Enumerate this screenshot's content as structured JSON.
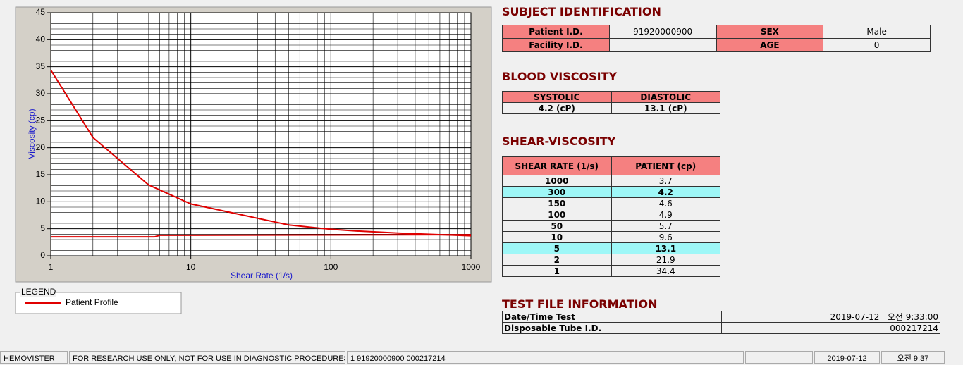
{
  "chart_data": {
    "type": "line",
    "xlabel": "Shear Rate (1/s)",
    "ylabel": "Viscosity (cp)",
    "x_scale": "log",
    "xlim": [
      1,
      1000
    ],
    "ylim": [
      0,
      45
    ],
    "xticks": [
      1,
      10,
      100,
      1000
    ],
    "yticks": [
      0,
      5,
      10,
      15,
      20,
      25,
      30,
      35,
      40,
      45
    ],
    "xminorticks": [
      2,
      3,
      4,
      5,
      6,
      7,
      8,
      9,
      20,
      30,
      40,
      50,
      60,
      70,
      80,
      90,
      200,
      300,
      400,
      500,
      600,
      700,
      800,
      900
    ],
    "yminorticks": [
      1,
      2,
      3,
      4,
      6,
      7,
      8,
      9,
      11,
      12,
      13,
      14,
      16,
      17,
      18,
      19,
      21,
      22,
      23,
      24,
      26,
      27,
      28,
      29,
      31,
      32,
      33,
      34,
      36,
      37,
      38,
      39,
      41,
      42,
      43,
      44
    ],
    "grid": true,
    "legend_title": "LEGEND",
    "series": [
      {
        "name": "Patient Profile",
        "color": "#e00000",
        "x": [
          1,
          2,
          5,
          10,
          50,
          100,
          150,
          300,
          1000
        ],
        "values": [
          34.4,
          21.9,
          13.1,
          9.6,
          5.7,
          4.9,
          4.6,
          4.2,
          3.7
        ]
      },
      {
        "color": "#e00000",
        "x": [
          1,
          5.5,
          6,
          1000
        ],
        "values": [
          3.5,
          3.5,
          3.8,
          3.9
        ]
      }
    ]
  },
  "subject_identification": {
    "title": "SUBJECT IDENTIFICATION",
    "rows": [
      [
        "Patient I.D.",
        "91920000900",
        "SEX",
        "Male"
      ],
      [
        "Facility I.D.",
        null,
        "AGE",
        "0"
      ]
    ]
  },
  "blood_viscosity": {
    "title": "BLOOD VISCOSITY",
    "headers": [
      "SYSTOLIC",
      "DIASTOLIC"
    ],
    "values": [
      "4.2 (cP)",
      "13.1 (cP)"
    ]
  },
  "shear_viscosity": {
    "title": "SHEAR-VISCOSITY",
    "headers": [
      "SHEAR RATE (1/s)",
      "PATIENT (cp)"
    ],
    "rows": [
      [
        1000,
        3.7
      ],
      [
        300,
        4.2
      ],
      [
        150,
        4.6
      ],
      [
        100,
        4.9
      ],
      [
        50,
        5.7
      ],
      [
        10,
        9.6
      ],
      [
        5,
        13.1
      ],
      [
        2,
        21.9
      ],
      [
        1,
        34.4
      ]
    ],
    "highlight_rows": [
      1,
      6
    ],
    "highlight_color": "#9ef7f7"
  },
  "test_file_information": {
    "title": "TEST FILE INFORMATION",
    "rows": [
      [
        "Date/Time Test",
        "2019-07-12   오전 9:33:00"
      ],
      [
        "Disposable Tube I.D.",
        "000217214"
      ]
    ]
  },
  "status_bar": [
    "HEMOVISTER",
    "FOR RESEARCH USE ONLY; NOT FOR USE IN DIAGNOSTIC PROCEDURES",
    "1  91920000900  000217214",
    "2019-07-12",
    "오전 9:37"
  ]
}
